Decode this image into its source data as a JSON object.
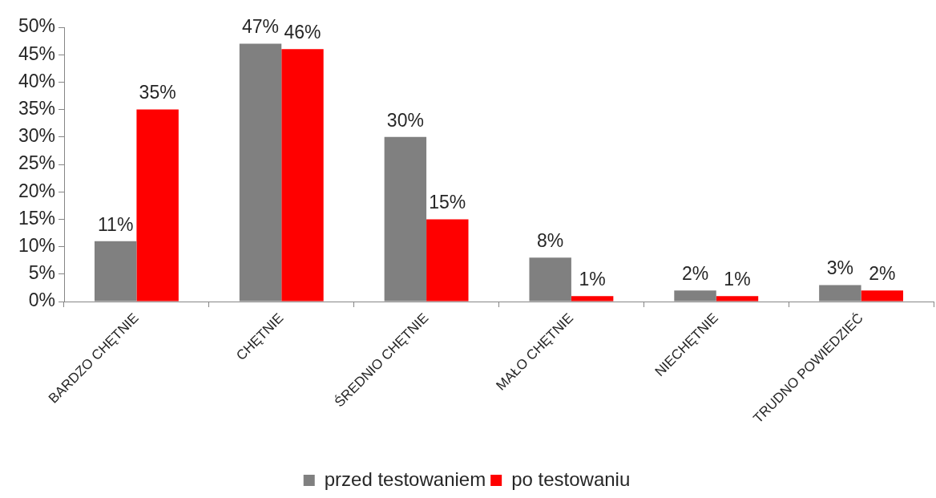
{
  "chart_data": {
    "type": "bar",
    "categories": [
      "BARDZO CHĘTNIE",
      "CHĘTNIE",
      "ŚREDNIO CHĘTNIE",
      "MAŁO CHĘTNIE",
      "NIECHĘTNIE",
      "TRUDNO POWIEDZIEĆ"
    ],
    "series": [
      {
        "name": "przed testowaniem",
        "color": "#808080",
        "values": [
          11,
          47,
          30,
          8,
          2,
          3
        ],
        "value_labels": [
          "11%",
          "47%",
          "30%",
          "8%",
          "2%",
          "3%"
        ]
      },
      {
        "name": "po testowaniu",
        "color": "#ff0000",
        "values": [
          35,
          46,
          15,
          1,
          1,
          2
        ],
        "value_labels": [
          "35%",
          "46%",
          "15%",
          "1%",
          "1%",
          "2%"
        ]
      }
    ],
    "ylim": [
      0,
      50
    ],
    "yticks": [
      {
        "value": 0,
        "label": "0%"
      },
      {
        "value": 5,
        "label": "5%"
      },
      {
        "value": 10,
        "label": "10%"
      },
      {
        "value": 15,
        "label": "15%"
      },
      {
        "value": 20,
        "label": "20%"
      },
      {
        "value": 25,
        "label": "25%"
      },
      {
        "value": 30,
        "label": "30%"
      },
      {
        "value": 35,
        "label": "35%"
      },
      {
        "value": 40,
        "label": "40%"
      },
      {
        "value": 45,
        "label": "45%"
      },
      {
        "value": 50,
        "label": "50%"
      }
    ],
    "legend": "bottom"
  }
}
